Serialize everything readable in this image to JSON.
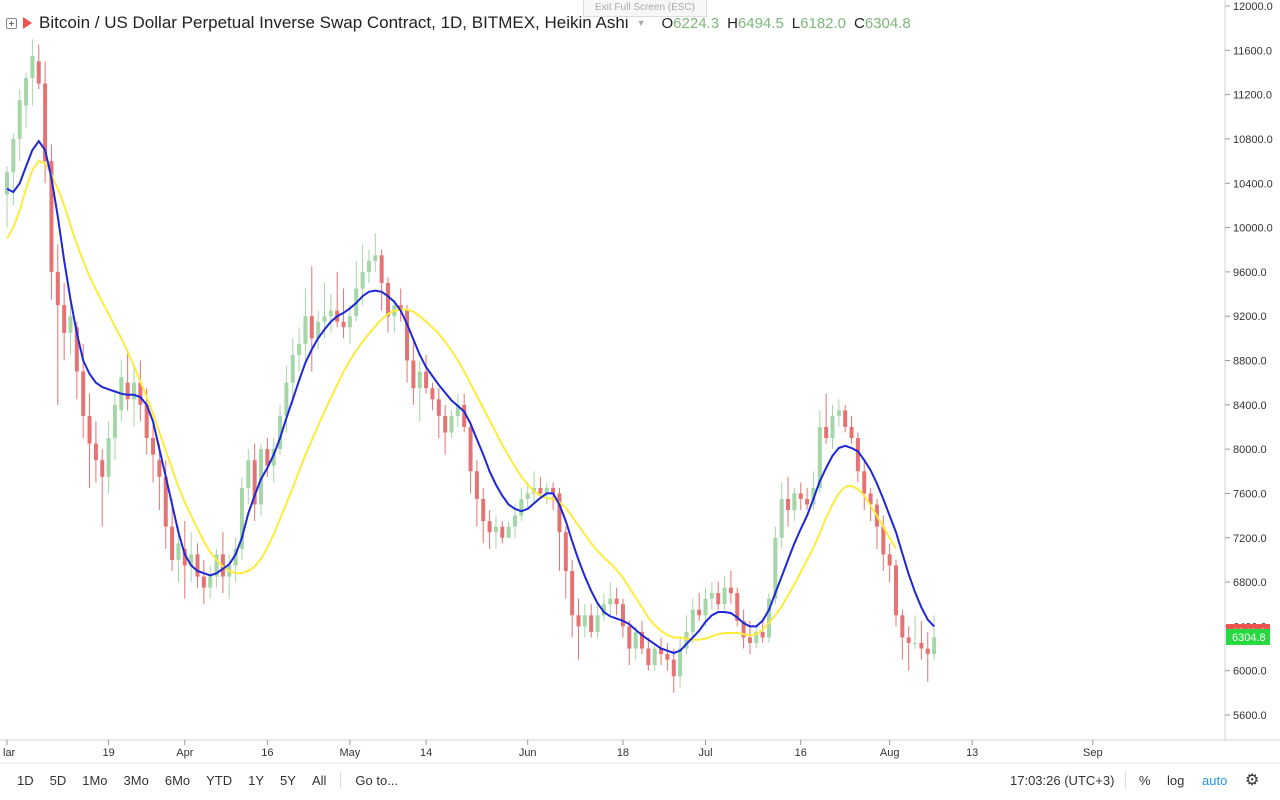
{
  "legend": {
    "title": "Bitcoin / US Dollar Perpetual Inverse Swap Contract, 1D, BITMEX, Heikin Ashi",
    "o_label": "O",
    "o_value": "6224.3",
    "h_label": "H",
    "h_value": "6494.5",
    "l_label": "L",
    "l_value": "6182.0",
    "c_label": "C",
    "c_value": "6304.8"
  },
  "exit_fullscreen": "Exit Full Screen (ESC)",
  "toolbar": {
    "ranges": [
      "1D",
      "5D",
      "1Mo",
      "3Mo",
      "6Mo",
      "YTD",
      "1Y",
      "5Y",
      "All"
    ],
    "goto": "Go to...",
    "time": "17:03:26 (UTC+3)",
    "percent": "%",
    "log": "log",
    "auto": "auto",
    "settings_icon": "gear-icon"
  },
  "colors": {
    "up": "#a5d6a7",
    "down": "#e57373",
    "ma_fast": "#1e27d6",
    "ma_slow": "#ffeb3b",
    "price_tag_red": "#ef5350",
    "price_tag_green": "#26d93e"
  },
  "chart_data": {
    "type": "candlestick",
    "style": "Heikin Ashi",
    "ylim": [
      5400,
      12000
    ],
    "y_ticks": [
      "12000.0",
      "11600.0",
      "11200.0",
      "10800.0",
      "10400.0",
      "10000.0",
      "9600.0",
      "9200.0",
      "8800.0",
      "8400.0",
      "8000.0",
      "7600.0",
      "7200.0",
      "6800.0",
      "6400.0",
      "6000.0",
      "5600.0"
    ],
    "x_ticks": [
      {
        "day": 0,
        "label": "lar"
      },
      {
        "day": 16,
        "label": "19"
      },
      {
        "day": 28,
        "label": "Apr"
      },
      {
        "day": 41,
        "label": "16"
      },
      {
        "day": 54,
        "label": "May"
      },
      {
        "day": 66,
        "label": "14"
      },
      {
        "day": 82,
        "label": "Jun"
      },
      {
        "day": 97,
        "label": "18"
      },
      {
        "day": 110,
        "label": "Jul"
      },
      {
        "day": 125,
        "label": "16"
      },
      {
        "day": 139,
        "label": "Aug"
      },
      {
        "day": 152,
        "label": "13"
      },
      {
        "day": 171,
        "label": "Sep"
      }
    ],
    "last_price_labels": [
      {
        "value": "6349.0",
        "kind": "red"
      },
      {
        "value": "6304.8",
        "kind": "green"
      }
    ],
    "candles": [
      [
        10300,
        10550,
        10000,
        10500
      ],
      [
        10500,
        10850,
        10200,
        10800
      ],
      [
        10800,
        11250,
        10600,
        11150
      ],
      [
        11100,
        11400,
        10900,
        11350
      ],
      [
        11350,
        11700,
        11100,
        11550
      ],
      [
        11500,
        11650,
        11250,
        11300
      ],
      [
        11300,
        11500,
        10400,
        10600
      ],
      [
        10600,
        10750,
        9350,
        9600
      ],
      [
        9600,
        9850,
        8400,
        9300
      ],
      [
        9300,
        9500,
        8800,
        9050
      ],
      [
        9050,
        9300,
        8850,
        9200
      ],
      [
        9100,
        9150,
        8450,
        8700
      ],
      [
        8700,
        8950,
        8100,
        8300
      ],
      [
        8300,
        8500,
        7650,
        8050
      ],
      [
        8050,
        8250,
        7700,
        7900
      ],
      [
        7900,
        8000,
        7300,
        7750
      ],
      [
        7750,
        8250,
        7600,
        8100
      ],
      [
        8100,
        8500,
        7900,
        8400
      ],
      [
        8350,
        8800,
        8250,
        8650
      ],
      [
        8600,
        8900,
        8350,
        8450
      ],
      [
        8450,
        8750,
        8200,
        8600
      ],
      [
        8600,
        8800,
        8250,
        8400
      ],
      [
        8400,
        8550,
        7950,
        8100
      ],
      [
        8100,
        8250,
        7700,
        7950
      ],
      [
        7900,
        8050,
        7450,
        7750
      ],
      [
        7750,
        7900,
        7100,
        7300
      ],
      [
        7300,
        7550,
        6900,
        7000
      ],
      [
        7000,
        7300,
        6800,
        7150
      ],
      [
        7100,
        7350,
        6650,
        6950
      ],
      [
        6950,
        7250,
        6800,
        7050
      ],
      [
        7050,
        7150,
        6750,
        6850
      ],
      [
        6850,
        7000,
        6600,
        6750
      ],
      [
        6750,
        6950,
        6650,
        6850
      ],
      [
        6850,
        7100,
        6750,
        7050
      ],
      [
        7050,
        7250,
        6700,
        6850
      ],
      [
        6850,
        7050,
        6650,
        6950
      ],
      [
        6950,
        7200,
        6800,
        7100
      ],
      [
        7100,
        7750,
        7000,
        7650
      ],
      [
        7650,
        8000,
        7500,
        7900
      ],
      [
        7900,
        8050,
        7350,
        7500
      ],
      [
        7500,
        8050,
        7400,
        8000
      ],
      [
        8000,
        8100,
        7750,
        7850
      ],
      [
        7850,
        8100,
        7700,
        8000
      ],
      [
        8000,
        8400,
        7950,
        8300
      ],
      [
        8300,
        8750,
        8150,
        8600
      ],
      [
        8600,
        9000,
        8400,
        8850
      ],
      [
        8850,
        9100,
        8700,
        8950
      ],
      [
        8950,
        9450,
        8800,
        9200
      ],
      [
        9200,
        9650,
        8700,
        9000
      ],
      [
        9000,
        9250,
        8900,
        9150
      ],
      [
        9150,
        9500,
        9000,
        9200
      ],
      [
        9200,
        9400,
        9050,
        9250
      ],
      [
        9250,
        9600,
        9100,
        9150
      ],
      [
        9150,
        9450,
        9000,
        9100
      ],
      [
        9100,
        9300,
        8950,
        9200
      ],
      [
        9200,
        9700,
        9150,
        9450
      ],
      [
        9450,
        9850,
        9300,
        9600
      ],
      [
        9600,
        9800,
        9500,
        9700
      ],
      [
        9700,
        9950,
        9600,
        9750
      ],
      [
        9750,
        9800,
        9250,
        9500
      ],
      [
        9500,
        9550,
        9050,
        9200
      ],
      [
        9200,
        9350,
        9050,
        9300
      ],
      [
        9300,
        9450,
        9150,
        9250
      ],
      [
        9250,
        9300,
        8600,
        8800
      ],
      [
        8800,
        9000,
        8400,
        8550
      ],
      [
        8550,
        8800,
        8250,
        8700
      ],
      [
        8700,
        8850,
        8500,
        8550
      ],
      [
        8550,
        8600,
        8350,
        8450
      ],
      [
        8450,
        8550,
        8100,
        8300
      ],
      [
        8300,
        8400,
        7950,
        8150
      ],
      [
        8150,
        8350,
        8100,
        8300
      ],
      [
        8300,
        8500,
        8200,
        8400
      ],
      [
        8400,
        8500,
        8150,
        8200
      ],
      [
        8200,
        8250,
        7600,
        7800
      ],
      [
        7800,
        7900,
        7300,
        7550
      ],
      [
        7550,
        7650,
        7150,
        7350
      ],
      [
        7350,
        7450,
        7100,
        7250
      ],
      [
        7250,
        7400,
        7100,
        7300
      ],
      [
        7300,
        7350,
        7150,
        7200
      ],
      [
        7200,
        7350,
        7200,
        7300
      ],
      [
        7300,
        7500,
        7200,
        7400
      ],
      [
        7400,
        7650,
        7350,
        7550
      ],
      [
        7550,
        7700,
        7450,
        7600
      ],
      [
        7600,
        7800,
        7500,
        7650
      ],
      [
        7650,
        7750,
        7550,
        7600
      ],
      [
        7600,
        7700,
        7500,
        7650
      ],
      [
        7650,
        7700,
        7450,
        7600
      ],
      [
        7600,
        7650,
        6900,
        7250
      ],
      [
        7250,
        7300,
        6650,
        6900
      ],
      [
        6900,
        7000,
        6300,
        6500
      ],
      [
        6500,
        6650,
        6100,
        6400
      ],
      [
        6400,
        6600,
        6300,
        6500
      ],
      [
        6500,
        6600,
        6300,
        6350
      ],
      [
        6350,
        6600,
        6300,
        6500
      ],
      [
        6500,
        6700,
        6450,
        6600
      ],
      [
        6600,
        6800,
        6500,
        6650
      ],
      [
        6650,
        6750,
        6500,
        6600
      ],
      [
        6600,
        6650,
        6300,
        6400
      ],
      [
        6400,
        6450,
        6050,
        6200
      ],
      [
        6200,
        6400,
        6100,
        6350
      ],
      [
        6350,
        6450,
        6150,
        6200
      ],
      [
        6200,
        6300,
        6000,
        6050
      ],
      [
        6050,
        6250,
        6000,
        6200
      ],
      [
        6200,
        6300,
        6050,
        6150
      ],
      [
        6150,
        6250,
        6000,
        6100
      ],
      [
        6100,
        6200,
        5800,
        5950
      ],
      [
        5950,
        6300,
        5850,
        6200
      ],
      [
        6200,
        6500,
        6150,
        6350
      ],
      [
        6350,
        6650,
        6250,
        6550
      ],
      [
        6550,
        6700,
        6450,
        6500
      ],
      [
        6500,
        6750,
        6400,
        6650
      ],
      [
        6650,
        6800,
        6550,
        6700
      ],
      [
        6700,
        6800,
        6550,
        6600
      ],
      [
        6600,
        6850,
        6550,
        6750
      ],
      [
        6750,
        6900,
        6600,
        6700
      ],
      [
        6700,
        6750,
        6400,
        6450
      ],
      [
        6450,
        6550,
        6200,
        6300
      ],
      [
        6300,
        6450,
        6150,
        6250
      ],
      [
        6250,
        6400,
        6200,
        6350
      ],
      [
        6350,
        6450,
        6250,
        6300
      ],
      [
        6300,
        6700,
        6250,
        6650
      ],
      [
        6650,
        7300,
        6600,
        7200
      ],
      [
        7200,
        7700,
        7100,
        7550
      ],
      [
        7550,
        7750,
        7300,
        7450
      ],
      [
        7450,
        7650,
        7350,
        7600
      ],
      [
        7600,
        7700,
        7450,
        7550
      ],
      [
        7550,
        7650,
        7450,
        7500
      ],
      [
        7500,
        7800,
        7450,
        7650
      ],
      [
        7650,
        8350,
        7600,
        8200
      ],
      [
        8200,
        8500,
        8050,
        8100
      ],
      [
        8100,
        8400,
        8000,
        8300
      ],
      [
        8300,
        8450,
        8200,
        8350
      ],
      [
        8350,
        8400,
        8150,
        8200
      ],
      [
        8200,
        8300,
        8050,
        8100
      ],
      [
        8100,
        8150,
        7700,
        7800
      ],
      [
        7800,
        7900,
        7450,
        7600
      ],
      [
        7600,
        7650,
        7350,
        7500
      ],
      [
        7500,
        7550,
        7100,
        7300
      ],
      [
        7300,
        7400,
        6900,
        7050
      ],
      [
        7050,
        7150,
        6800,
        6950
      ],
      [
        6950,
        7000,
        6400,
        6500
      ],
      [
        6500,
        6550,
        6100,
        6300
      ],
      [
        6300,
        6400,
        6000,
        6250
      ],
      [
        6250,
        6500,
        6200,
        6250
      ],
      [
        6250,
        6450,
        6100,
        6200
      ],
      [
        6200,
        6350,
        5900,
        6150
      ],
      [
        6150,
        6500,
        6100,
        6300
      ]
    ],
    "series": [
      {
        "type": "ma",
        "color": "#1e27d6",
        "values": [
          10350,
          10320,
          10400,
          10550,
          10700,
          10780,
          10700,
          10450,
          10100,
          9700,
          9350,
          9050,
          8800,
          8680,
          8600,
          8560,
          8540,
          8520,
          8500,
          8490,
          8490,
          8470,
          8400,
          8250,
          8000,
          7750,
          7500,
          7250,
          7050,
          6950,
          6900,
          6880,
          6860,
          6880,
          6920,
          6960,
          7050,
          7200,
          7420,
          7580,
          7730,
          7830,
          7950,
          8100,
          8280,
          8450,
          8620,
          8780,
          8900,
          9000,
          9080,
          9150,
          9200,
          9230,
          9270,
          9320,
          9380,
          9420,
          9430,
          9420,
          9380,
          9330,
          9250,
          9130,
          8990,
          8850,
          8740,
          8660,
          8580,
          8510,
          8440,
          8390,
          8340,
          8230,
          8090,
          7950,
          7800,
          7680,
          7580,
          7500,
          7460,
          7440,
          7460,
          7510,
          7560,
          7600,
          7600,
          7500,
          7350,
          7170,
          7000,
          6850,
          6720,
          6610,
          6530,
          6490,
          6470,
          6450,
          6420,
          6370,
          6320,
          6280,
          6240,
          6200,
          6180,
          6160,
          6180,
          6240,
          6300,
          6360,
          6440,
          6500,
          6530,
          6530,
          6520,
          6480,
          6430,
          6400,
          6400,
          6450,
          6550,
          6700,
          6850,
          7000,
          7150,
          7280,
          7400,
          7550,
          7710,
          7830,
          7940,
          8010,
          8030,
          8010,
          7980,
          7900,
          7810,
          7690,
          7550,
          7400,
          7250,
          7060,
          6870,
          6710,
          6570,
          6460,
          6400
        ]
      },
      {
        "type": "ma",
        "color": "#ffeb3b",
        "values": [
          9900,
          10000,
          10150,
          10350,
          10520,
          10600,
          10580,
          10480,
          10350,
          10200,
          10020,
          9850,
          9700,
          9560,
          9440,
          9330,
          9220,
          9110,
          9000,
          8880,
          8750,
          8610,
          8470,
          8320,
          8150,
          7990,
          7820,
          7660,
          7520,
          7400,
          7280,
          7170,
          7070,
          7000,
          6940,
          6900,
          6880,
          6880,
          6900,
          6940,
          7010,
          7110,
          7230,
          7370,
          7510,
          7650,
          7800,
          7950,
          8080,
          8210,
          8340,
          8460,
          8580,
          8700,
          8800,
          8890,
          8970,
          9040,
          9110,
          9170,
          9220,
          9250,
          9260,
          9260,
          9240,
          9200,
          9150,
          9100,
          9040,
          8970,
          8890,
          8800,
          8700,
          8590,
          8480,
          8370,
          8260,
          8150,
          8040,
          7940,
          7840,
          7750,
          7680,
          7620,
          7580,
          7560,
          7550,
          7520,
          7470,
          7390,
          7310,
          7230,
          7150,
          7080,
          7020,
          6970,
          6910,
          6840,
          6750,
          6660,
          6570,
          6480,
          6410,
          6360,
          6320,
          6300,
          6300,
          6290,
          6280,
          6280,
          6290,
          6310,
          6330,
          6340,
          6340,
          6340,
          6330,
          6320,
          6330,
          6370,
          6430,
          6500,
          6580,
          6680,
          6780,
          6890,
          7000,
          7110,
          7240,
          7380,
          7500,
          7600,
          7660,
          7670,
          7640,
          7580,
          7490,
          7400,
          7300,
          7200,
          7100
        ]
      }
    ]
  }
}
